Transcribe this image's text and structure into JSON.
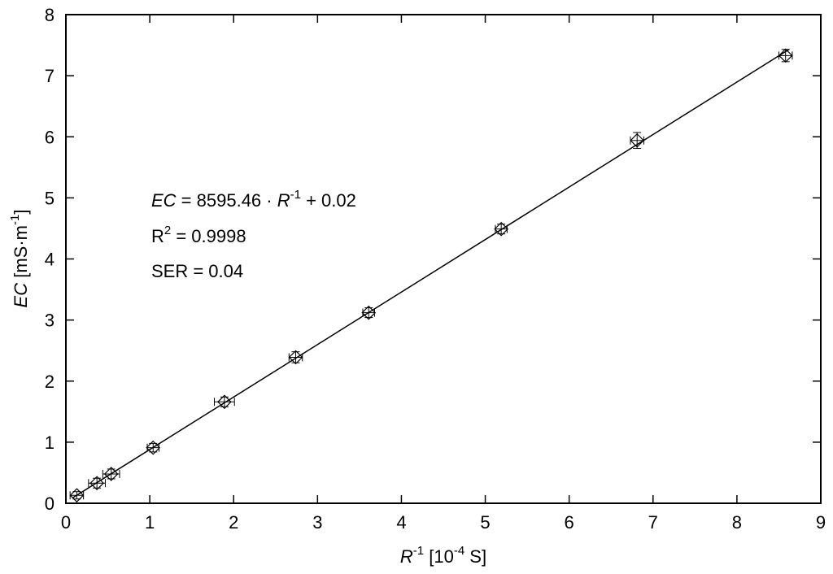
{
  "chart_data": {
    "type": "scatter",
    "xlabel": {
      "var": "R",
      "sup": "-1",
      "unit": " [10",
      "unit_sup": "-4",
      "unit_end": " S]"
    },
    "ylabel": {
      "var": "EC",
      "unit": " [mS·m",
      "unit_sup": "-1",
      "unit_end": "]"
    },
    "xlim": [
      0,
      9
    ],
    "ylim": [
      0,
      8
    ],
    "x_ticks": [
      0,
      1,
      2,
      3,
      4,
      5,
      6,
      7,
      8,
      9
    ],
    "y_ticks": [
      0,
      1,
      2,
      3,
      4,
      5,
      6,
      7,
      8
    ],
    "grid": false,
    "legend": "none",
    "series": [
      {
        "marker": "diamond-with-error-bars",
        "points": [
          {
            "x": 0.13,
            "y": 0.13,
            "xerr": 0.08,
            "yerr": 0.06
          },
          {
            "x": 0.37,
            "y": 0.33,
            "xerr": 0.1,
            "yerr": 0.08
          },
          {
            "x": 0.54,
            "y": 0.48,
            "xerr": 0.1,
            "yerr": 0.08
          },
          {
            "x": 1.04,
            "y": 0.91,
            "xerr": 0.07,
            "yerr": 0.07
          },
          {
            "x": 1.89,
            "y": 1.66,
            "xerr": 0.12,
            "yerr": 0.08
          },
          {
            "x": 2.74,
            "y": 2.39,
            "xerr": 0.08,
            "yerr": 0.09
          },
          {
            "x": 3.61,
            "y": 3.12,
            "xerr": 0.07,
            "yerr": 0.08
          },
          {
            "x": 5.19,
            "y": 4.49,
            "xerr": 0.07,
            "yerr": 0.08
          },
          {
            "x": 6.81,
            "y": 5.94,
            "xerr": 0.08,
            "yerr": 0.13
          },
          {
            "x": 8.58,
            "y": 7.33,
            "xerr": 0.08,
            "yerr": 0.1
          }
        ]
      }
    ],
    "fit": {
      "slope": 0.859546,
      "intercept": 0.02,
      "x_range": [
        0.08,
        8.62
      ]
    },
    "annotations": {
      "equation": {
        "var": "EC",
        "mid": " = 8595.46 · ",
        "var2": "R",
        "sup": "-1",
        "end": " + 0.02"
      },
      "r2": {
        "base": "R",
        "sup": "2",
        "end": " = 0.9998"
      },
      "ser": "SER = 0.04"
    }
  }
}
